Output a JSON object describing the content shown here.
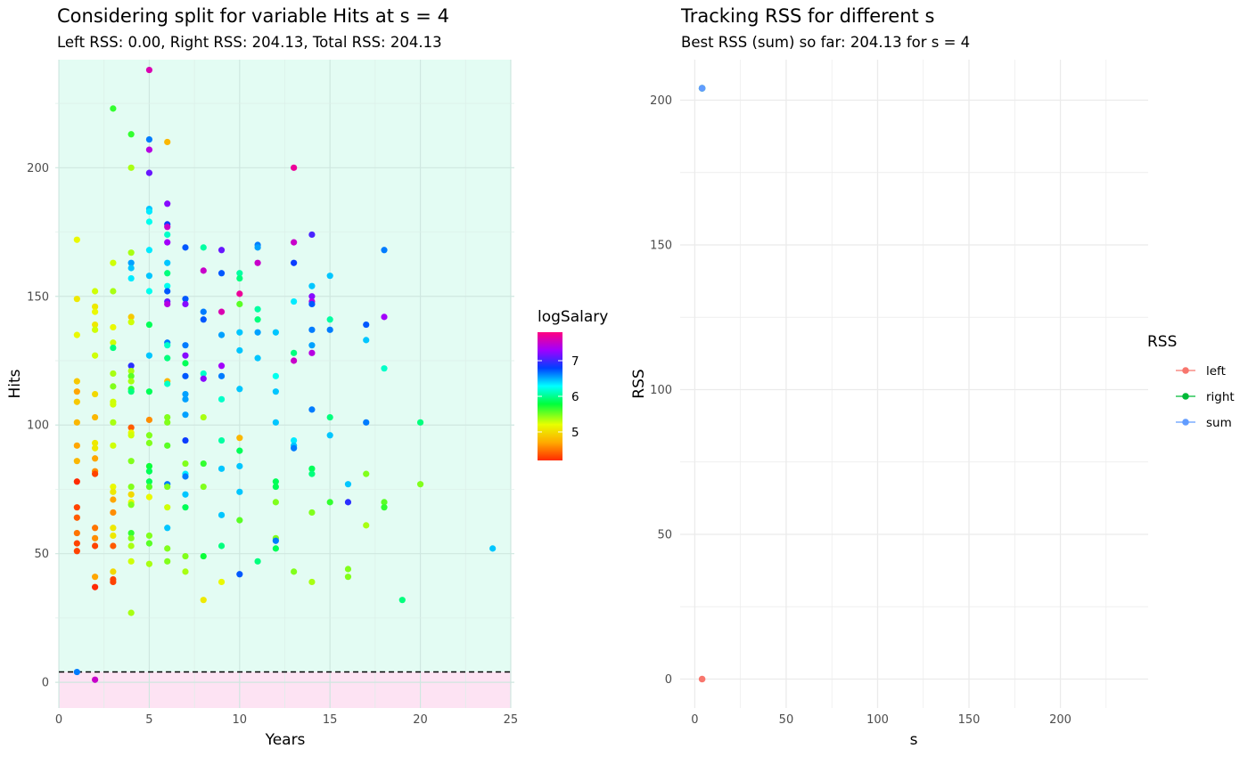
{
  "left_panel": {
    "title": "Considering split for variable Hits at s = 4",
    "subtitle": "Left RSS: 0.00, Right RSS: 204.13, Total RSS: 204.13",
    "colorbar_title": "logSalary",
    "colorbar_ticks": [
      "5",
      "6",
      "7"
    ]
  },
  "right_panel": {
    "title": "Tracking RSS for different s",
    "subtitle": "Best RSS (sum) so far: 204.13 for s = 4",
    "legend_title": "RSS",
    "legend_items": [
      {
        "label": "left",
        "color": "#F8766D"
      },
      {
        "label": "right",
        "color": "#00BA38"
      },
      {
        "label": "sum",
        "color": "#619CFF"
      }
    ]
  },
  "colors": {
    "region_above": "#e3fcf3",
    "region_below": "#fde3f3",
    "split_line": "#000000"
  },
  "chart_data": [
    {
      "type": "scatter",
      "title": "Considering split for variable Hits at s = 4",
      "subtitle": "Left RSS: 0.00, Right RSS: 204.13, Total RSS: 204.13",
      "xlabel": "Years",
      "ylabel": "Hits",
      "xlim": [
        -0.2,
        25.2
      ],
      "ylim": [
        -10,
        242
      ],
      "xticks": [
        0,
        5,
        10,
        15,
        20,
        25
      ],
      "yticks": [
        0,
        50,
        100,
        150,
        200
      ],
      "split_value": 4,
      "color_variable": "logSalary",
      "color_range": [
        4.2,
        7.9
      ],
      "points": [
        [
          1,
          4,
          6.7
        ],
        [
          2,
          1,
          7.6
        ],
        [
          1,
          172,
          5.2
        ],
        [
          1,
          149,
          5.1
        ],
        [
          1,
          135,
          5.2
        ],
        [
          1,
          117,
          4.9
        ],
        [
          1,
          113,
          4.7
        ],
        [
          1,
          109,
          4.9
        ],
        [
          1,
          101,
          4.8
        ],
        [
          1,
          92,
          4.7
        ],
        [
          1,
          86,
          4.8
        ],
        [
          1,
          78,
          4.2
        ],
        [
          1,
          68,
          4.3
        ],
        [
          1,
          64,
          4.4
        ],
        [
          1,
          58,
          4.5
        ],
        [
          1,
          54,
          4.3
        ],
        [
          1,
          51,
          4.3
        ],
        [
          2,
          152,
          5.3
        ],
        [
          2,
          146,
          5.1
        ],
        [
          2,
          144,
          5.2
        ],
        [
          2,
          139,
          5.1
        ],
        [
          2,
          137,
          5.3
        ],
        [
          2,
          127,
          5.3
        ],
        [
          2,
          112,
          5.0
        ],
        [
          2,
          103,
          4.8
        ],
        [
          2,
          93,
          5.1
        ],
        [
          2,
          91,
          5.1
        ],
        [
          2,
          87,
          4.7
        ],
        [
          2,
          82,
          4.6
        ],
        [
          2,
          81,
          4.3
        ],
        [
          2,
          60,
          4.5
        ],
        [
          2,
          56,
          4.6
        ],
        [
          2,
          53,
          4.3
        ],
        [
          2,
          41,
          4.7
        ],
        [
          2,
          37,
          4.2
        ],
        [
          3,
          223,
          5.7
        ],
        [
          3,
          163,
          5.3
        ],
        [
          3,
          152,
          5.4
        ],
        [
          3,
          138,
          5.2
        ],
        [
          3,
          132,
          5.3
        ],
        [
          3,
          130,
          6.0
        ],
        [
          3,
          120,
          5.4
        ],
        [
          3,
          115,
          5.5
        ],
        [
          3,
          109,
          5.3
        ],
        [
          3,
          108,
          5.3
        ],
        [
          3,
          101,
          5.4
        ],
        [
          3,
          92,
          5.3
        ],
        [
          3,
          76,
          5.2
        ],
        [
          3,
          74,
          5.1
        ],
        [
          3,
          71,
          4.7
        ],
        [
          3,
          66,
          4.6
        ],
        [
          3,
          60,
          5.1
        ],
        [
          3,
          57,
          5.1
        ],
        [
          3,
          53,
          4.4
        ],
        [
          3,
          43,
          5.0
        ],
        [
          3,
          40,
          4.3
        ],
        [
          3,
          39,
          4.3
        ],
        [
          4,
          213,
          5.7
        ],
        [
          4,
          200,
          5.4
        ],
        [
          4,
          167,
          5.4
        ],
        [
          4,
          163,
          6.6
        ],
        [
          4,
          161,
          6.5
        ],
        [
          4,
          157,
          6.4
        ],
        [
          4,
          142,
          4.9
        ],
        [
          4,
          140,
          5.3
        ],
        [
          4,
          123,
          7.0
        ],
        [
          4,
          121,
          5.4
        ],
        [
          4,
          119,
          5.6
        ],
        [
          4,
          117,
          5.4
        ],
        [
          4,
          114,
          5.7
        ],
        [
          4,
          113,
          6.0
        ],
        [
          4,
          99,
          4.4
        ],
        [
          4,
          97,
          5.2
        ],
        [
          4,
          96,
          5.3
        ],
        [
          4,
          86,
          5.5
        ],
        [
          4,
          76,
          5.5
        ],
        [
          4,
          73,
          5.0
        ],
        [
          4,
          70,
          5.2
        ],
        [
          4,
          69,
          5.5
        ],
        [
          4,
          58,
          5.7
        ],
        [
          4,
          56,
          5.5
        ],
        [
          4,
          53,
          5.4
        ],
        [
          4,
          47,
          5.3
        ],
        [
          4,
          27,
          5.4
        ]
      ],
      "points_right_extra": [
        [
          5,
          238,
          7.7
        ],
        [
          5,
          211,
          6.7
        ],
        [
          5,
          207,
          7.5
        ],
        [
          5,
          198,
          7.2
        ],
        [
          5,
          184,
          6.5
        ],
        [
          5,
          183,
          6.4
        ],
        [
          5,
          179,
          6.3
        ],
        [
          5,
          168,
          6.4
        ],
        [
          5,
          158,
          6.5
        ],
        [
          5,
          152,
          6.3
        ],
        [
          5,
          139,
          5.9
        ],
        [
          5,
          127,
          6.5
        ],
        [
          5,
          113,
          5.9
        ],
        [
          5,
          102,
          4.6
        ],
        [
          5,
          96,
          5.5
        ],
        [
          5,
          93,
          5.5
        ],
        [
          5,
          84,
          5.8
        ],
        [
          5,
          82,
          5.9
        ],
        [
          5,
          78,
          5.9
        ],
        [
          5,
          76,
          5.6
        ],
        [
          5,
          72,
          5.2
        ],
        [
          5,
          57,
          5.5
        ],
        [
          5,
          54,
          5.6
        ],
        [
          5,
          46,
          5.4
        ],
        [
          6,
          210,
          4.8
        ],
        [
          6,
          186,
          7.3
        ],
        [
          6,
          178,
          6.9
        ],
        [
          6,
          177,
          7.6
        ],
        [
          6,
          174,
          6.2
        ],
        [
          6,
          171,
          7.4
        ],
        [
          6,
          163,
          6.5
        ],
        [
          6,
          159,
          6.0
        ],
        [
          6,
          154,
          6.3
        ],
        [
          6,
          152,
          6.8
        ],
        [
          6,
          148,
          7.2
        ],
        [
          6,
          147,
          7.5
        ],
        [
          6,
          132,
          6.7
        ],
        [
          6,
          131,
          6.2
        ],
        [
          6,
          126,
          6.0
        ],
        [
          6,
          117,
          4.8
        ],
        [
          6,
          116,
          6.2
        ],
        [
          6,
          103,
          5.5
        ],
        [
          6,
          101,
          5.5
        ],
        [
          6,
          92,
          5.6
        ],
        [
          6,
          77,
          6.7
        ],
        [
          6,
          76,
          5.5
        ],
        [
          6,
          68,
          5.3
        ],
        [
          6,
          60,
          6.5
        ],
        [
          6,
          52,
          5.5
        ],
        [
          6,
          47,
          5.5
        ],
        [
          7,
          169,
          6.8
        ],
        [
          7,
          149,
          6.8
        ],
        [
          7,
          147,
          7.3
        ],
        [
          7,
          131,
          6.7
        ],
        [
          7,
          127,
          7.3
        ],
        [
          7,
          124,
          5.9
        ],
        [
          7,
          119,
          6.8
        ],
        [
          7,
          112,
          6.6
        ],
        [
          7,
          110,
          6.6
        ],
        [
          7,
          104,
          6.6
        ],
        [
          7,
          94,
          6.9
        ],
        [
          7,
          85,
          5.5
        ],
        [
          7,
          81,
          6.4
        ],
        [
          7,
          80,
          6.7
        ],
        [
          7,
          73,
          6.5
        ],
        [
          7,
          68,
          5.9
        ],
        [
          7,
          49,
          5.5
        ],
        [
          7,
          43,
          5.4
        ],
        [
          8,
          169,
          6.1
        ],
        [
          8,
          160,
          7.6
        ],
        [
          8,
          144,
          6.7
        ],
        [
          8,
          141,
          6.8
        ],
        [
          8,
          120,
          6.2
        ],
        [
          8,
          118,
          7.3
        ],
        [
          8,
          103,
          5.4
        ],
        [
          8,
          85,
          5.7
        ],
        [
          8,
          76,
          5.5
        ],
        [
          8,
          49,
          5.8
        ],
        [
          8,
          32,
          5.1
        ],
        [
          9,
          168,
          7.2
        ],
        [
          9,
          159,
          6.8
        ],
        [
          9,
          144,
          7.7
        ],
        [
          9,
          135,
          6.6
        ],
        [
          9,
          123,
          7.4
        ],
        [
          9,
          119,
          6.7
        ],
        [
          9,
          110,
          6.2
        ],
        [
          9,
          94,
          6.1
        ],
        [
          9,
          83,
          6.5
        ],
        [
          9,
          65,
          6.5
        ],
        [
          9,
          53,
          6.0
        ],
        [
          9,
          39,
          5.2
        ],
        [
          10,
          159,
          6.1
        ],
        [
          10,
          157,
          6.0
        ],
        [
          10,
          151,
          7.8
        ],
        [
          10,
          147,
          5.6
        ],
        [
          10,
          136,
          6.5
        ],
        [
          10,
          129,
          6.5
        ],
        [
          10,
          114,
          6.5
        ],
        [
          10,
          95,
          4.8
        ],
        [
          10,
          90,
          5.9
        ],
        [
          10,
          84,
          6.5
        ],
        [
          10,
          74,
          6.5
        ],
        [
          10,
          63,
          5.6
        ],
        [
          10,
          42,
          6.8
        ],
        [
          11,
          170,
          6.7
        ],
        [
          11,
          169,
          6.6
        ],
        [
          11,
          163,
          7.6
        ],
        [
          11,
          145,
          6.1
        ],
        [
          11,
          141,
          6.0
        ],
        [
          11,
          136,
          6.6
        ],
        [
          11,
          126,
          6.5
        ],
        [
          11,
          47,
          6.0
        ],
        [
          12,
          136,
          6.5
        ],
        [
          12,
          119,
          6.3
        ],
        [
          12,
          113,
          6.5
        ],
        [
          12,
          101,
          6.5
        ],
        [
          12,
          78,
          5.9
        ],
        [
          12,
          76,
          5.9
        ],
        [
          12,
          70,
          5.5
        ],
        [
          12,
          56,
          5.5
        ],
        [
          12,
          55,
          6.7
        ],
        [
          12,
          52,
          5.9
        ],
        [
          13,
          200,
          7.8
        ],
        [
          13,
          171,
          7.6
        ],
        [
          13,
          163,
          6.9
        ],
        [
          13,
          148,
          6.4
        ],
        [
          13,
          128,
          6.0
        ],
        [
          13,
          125,
          7.6
        ],
        [
          13,
          94,
          6.4
        ],
        [
          13,
          92,
          6.5
        ],
        [
          13,
          91,
          6.7
        ],
        [
          13,
          43,
          5.5
        ],
        [
          14,
          174,
          7.1
        ],
        [
          14,
          154,
          6.5
        ],
        [
          14,
          150,
          7.3
        ],
        [
          14,
          148,
          7.5
        ],
        [
          14,
          147,
          6.8
        ],
        [
          14,
          137,
          6.7
        ],
        [
          14,
          131,
          6.6
        ],
        [
          14,
          128,
          7.5
        ],
        [
          14,
          106,
          6.7
        ],
        [
          14,
          83,
          5.9
        ],
        [
          14,
          81,
          6.0
        ],
        [
          14,
          66,
          5.5
        ],
        [
          14,
          39,
          5.4
        ],
        [
          15,
          158,
          6.5
        ],
        [
          15,
          141,
          6.1
        ],
        [
          15,
          137,
          6.7
        ],
        [
          15,
          103,
          6.0
        ],
        [
          15,
          96,
          6.5
        ],
        [
          15,
          70,
          5.7
        ],
        [
          16,
          77,
          6.5
        ],
        [
          16,
          70,
          7.0
        ],
        [
          16,
          44,
          5.5
        ],
        [
          16,
          41,
          5.5
        ],
        [
          17,
          139,
          6.8
        ],
        [
          17,
          133,
          6.5
        ],
        [
          17,
          101,
          6.7
        ],
        [
          17,
          81,
          5.5
        ],
        [
          17,
          61,
          5.4
        ],
        [
          18,
          168,
          6.7
        ],
        [
          18,
          142,
          7.4
        ],
        [
          18,
          122,
          6.2
        ],
        [
          18,
          70,
          5.6
        ],
        [
          18,
          68,
          5.7
        ],
        [
          19,
          32,
          6.0
        ],
        [
          20,
          101,
          6.0
        ],
        [
          20,
          77,
          5.5
        ],
        [
          24,
          52,
          6.5
        ]
      ]
    },
    {
      "type": "scatter",
      "title": "Tracking RSS for different s",
      "subtitle": "Best RSS (sum) so far: 204.13 for s = 4",
      "xlabel": "s",
      "ylabel": "RSS",
      "xlim": [
        -8,
        248
      ],
      "ylim": [
        -10,
        214
      ],
      "xticks": [
        0,
        50,
        100,
        150,
        200
      ],
      "yticks": [
        0,
        50,
        100,
        150,
        200
      ],
      "series": [
        {
          "name": "left",
          "x": [
            4
          ],
          "y": [
            0.0
          ]
        },
        {
          "name": "right",
          "x": [
            4
          ],
          "y": [
            204.13
          ]
        },
        {
          "name": "sum",
          "x": [
            4
          ],
          "y": [
            204.13
          ]
        }
      ]
    }
  ]
}
